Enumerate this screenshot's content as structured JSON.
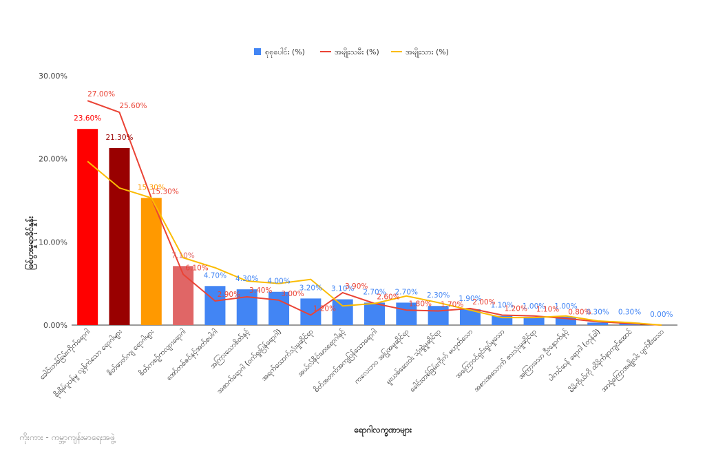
{
  "source": "ကိုးကား - ကမ္ဘာ့ကျန်းမာရေးအဖွဲ့",
  "chart_data": {
    "type": "bar",
    "xlabel": "ရောဂါလက္ခဏာများ",
    "ylabel": "ဖြစ်ပွားမှုရာခိုင်နှုန်း",
    "ylim": [
      0,
      30
    ],
    "yticks": [
      0,
      10,
      20,
      30
    ],
    "ytick_labels": [
      "0.00%",
      "10.00%",
      "20.00%",
      "30.00%"
    ],
    "grid": false,
    "legend_position": "top",
    "categories": [
      "ခေါင်းတစ်ခြမ်းကိုက်ရောဂါ",
      "စိုးရိမ်ပူပန်မှု လွန်ကဲသော ရောဂါများ",
      "စိတ်ဓာတ်ကျ ရောဂါများ",
      "စိတ်ကစဉ့်ကလျားရောဂါ",
      "အော်တစ်ဇင်နှင့်အတ်စပါဂါ",
      "အကြားသောစိတ်နှင့်",
      "အဓာက်ရောဂါ (ဝက်ရူးပြန်ရောဂါ)",
      "အရက်သောက်သုံးမှုဆိုင်ရာ",
      "အယ်လ်ဇိုင်းမားရောဂါနှင့်",
      "စိတ်အတက်အကျပြန်သောရောဂါ",
      "ကလေးဘဝ အပြုအမူဆိုင်ရာ",
      "မူးယစ်ဆေးဝါး သုံးစွဲမှုဆိုင်ရာ",
      "ခေါင်းတစ်ခြမ်းကိုက် မဟုတ်သော",
      "အကြောဝင်ရှင်းရှုပ်မှုသော",
      "အစားအသောက် စားသုံးမှုဆိုင်ရာ",
      "အကြားသော ဦးနှောက်နှင့်",
      "ပါကင်ဆန် ရောဂါ (တုန်ခါ)",
      "မိမိကိုယ်ကို ထိခိုက်နာကျင်အောင်",
      "အာရုံကြောအမျိုးပါး ပျက်စီးသော"
    ],
    "series": [
      {
        "name": "စုစုပေါင်း (%)",
        "type": "bar",
        "color": "#4285f4",
        "values": [
          23.6,
          21.3,
          15.3,
          7.1,
          4.7,
          4.3,
          4.0,
          3.2,
          3.1,
          2.7,
          2.7,
          2.3,
          1.9,
          1.1,
          1.0,
          1.0,
          0.3,
          0.3,
          0.0
        ],
        "labels": [
          "23.60%",
          "21.30%",
          "15.30%",
          "7.10%",
          "4.70%",
          "4.30%",
          "4.00%",
          "3.20%",
          "3.10%",
          "2.70%",
          "2.70%",
          "2.30%",
          "1.90%",
          "1.10%",
          "1.00%",
          "1.00%",
          "0.30%",
          "0.30%",
          "0.00%"
        ],
        "point_colors": [
          "#ff0000",
          "#990000",
          "#ff9900",
          "#e06666"
        ]
      },
      {
        "name": "အမျိုးသမီး (%)",
        "type": "line",
        "color": "#ea4335",
        "values": [
          27.0,
          25.6,
          15.3,
          6.1,
          2.9,
          3.4,
          3.0,
          1.2,
          3.9,
          2.6,
          1.8,
          1.7,
          2.0,
          1.2,
          1.1,
          0.8,
          0.4,
          0.2,
          0.0
        ],
        "labels": [
          "27.00%",
          "25.60%",
          "15.30%",
          "6.10%",
          "2.90%",
          "3.40%",
          "3.00%",
          "1.20%",
          "3.90%",
          "2.60%",
          "1.80%",
          "1.70%",
          "2.00%",
          "1.20%",
          "1.10%",
          "0.80%",
          "",
          "",
          ""
        ]
      },
      {
        "name": "အမျိုးသား (%)",
        "type": "line",
        "color": "#fbbc04",
        "values": [
          19.7,
          16.5,
          15.3,
          8.1,
          6.9,
          5.3,
          5.0,
          5.5,
          2.3,
          2.6,
          3.5,
          2.7,
          1.8,
          0.9,
          0.9,
          1.1,
          0.5,
          0.3,
          0.0
        ],
        "labels": []
      }
    ]
  }
}
